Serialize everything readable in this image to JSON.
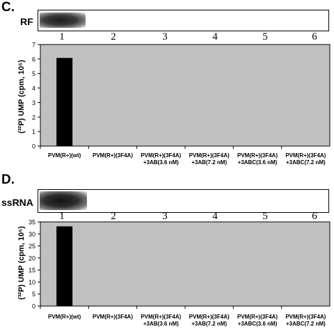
{
  "panels": [
    {
      "letter": "C.",
      "track_label": "RF",
      "lane_numbers": [
        "1",
        "2",
        "3",
        "4",
        "5",
        "6"
      ],
      "band_lanes": [
        1
      ]
    },
    {
      "letter": "D.",
      "track_label": "ssRNA",
      "lane_numbers": [
        "1",
        "2",
        "3",
        "4",
        "5",
        "6"
      ],
      "band_lanes": [
        1
      ]
    }
  ],
  "chart_data": [
    {
      "type": "bar",
      "categories": [
        "PVM(R+)(wt)",
        "PVM(R+)(3F4A)",
        "PVM(R+)(3F4A)\n+3AB(3.6 nM)",
        "PVM(R+)(3F4A)\n+3AB(7.2 nM)",
        "PVM(R+)(3F4A)\n+3ABC(3.6 nM)",
        "PVM(R+)(3F4A)\n+3ABC(7.2 nM)"
      ],
      "values": [
        6.05,
        0,
        0,
        0,
        0,
        0
      ],
      "ylabel": "(³²P) UMP (cpm, 10⁵)",
      "yticks": [
        0,
        1,
        2,
        3,
        4,
        5,
        6,
        7
      ],
      "ylim": [
        0,
        7
      ],
      "plot_bg": "#c0c0c0",
      "bar_color": "#000000",
      "grid": false
    },
    {
      "type": "bar",
      "categories": [
        "PVM(R+)(wt)",
        "PVM(R+)(3F4A)",
        "PVM(R+)(3F4A)\n+3AB(3.6 nM)",
        "PVM(R+)(3F4A)\n+3AB(7.2 nM)",
        "PVM(R+)(3F4A)\n+3ABC(3.6 nM)",
        "PVM(R+)(3F4A)\n+3ABC(7.2 nM)"
      ],
      "values": [
        33,
        0,
        0,
        0,
        0,
        0
      ],
      "ylabel": "(³²P) UMP (cpm, 10⁵)",
      "yticks": [
        0,
        5,
        10,
        15,
        20,
        25,
        30,
        35
      ],
      "ylim": [
        0,
        35
      ],
      "plot_bg": "#c0c0c0",
      "bar_color": "#000000",
      "grid": false
    }
  ]
}
